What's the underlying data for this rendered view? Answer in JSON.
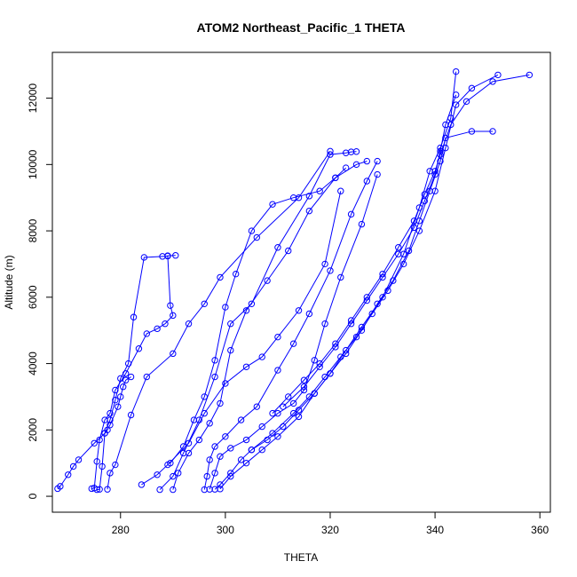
{
  "chart_data": {
    "type": "scatter",
    "title": "ATOM2 Northeast_Pacific_1 THETA",
    "xlabel": "THETA",
    "ylabel": "Altitude (m)",
    "xlim": [
      267,
      362
    ],
    "ylim": [
      -480,
      13380
    ],
    "x_ticks": [
      280,
      300,
      320,
      340,
      360
    ],
    "y_ticks": [
      0,
      2000,
      4000,
      6000,
      8000,
      10000,
      12000
    ],
    "grid": false,
    "legend": "none",
    "color": "#0000ff",
    "series": [
      {
        "x": [
          268,
          268.5,
          270,
          271,
          272,
          275,
          277,
          278,
          279,
          280,
          281.5,
          282.5,
          284.5,
          288,
          289
        ],
        "y": [
          230,
          300,
          650,
          900,
          1100,
          1600,
          1900,
          2300,
          2900,
          3550,
          4000,
          5400,
          7200,
          7230,
          7240
        ]
      },
      {
        "x": [
          274.5,
          275,
          275.5,
          276,
          277,
          278,
          279,
          281,
          283.5,
          285,
          287,
          288.5,
          290,
          289.5,
          289,
          290.5
        ],
        "y": [
          230,
          250,
          1050,
          1700,
          2300,
          2500,
          3200,
          3700,
          4450,
          4900,
          5050,
          5200,
          5450,
          5750,
          7250,
          7260
        ]
      },
      {
        "x": [
          275.5,
          276,
          276.5,
          277,
          277.5,
          278,
          279.5,
          280,
          280.5,
          281,
          282
        ],
        "y": [
          200,
          210,
          900,
          1900,
          2000,
          2150,
          2700,
          3000,
          3300,
          3500,
          3600
        ]
      },
      {
        "x": [
          277.5,
          278,
          279,
          282,
          285,
          290,
          293,
          296,
          299,
          306,
          314,
          320
        ],
        "y": [
          210,
          700,
          950,
          2450,
          3600,
          4300,
          5200,
          5800,
          6600,
          7800,
          9000,
          10400
        ]
      },
      {
        "x": [
          284,
          287,
          289,
          293,
          296,
          300,
          304,
          307,
          310,
          314,
          319,
          322
        ],
        "y": [
          350,
          650,
          950,
          1600,
          2500,
          3400,
          3900,
          4200,
          4800,
          5600,
          7000,
          9200
        ]
      },
      {
        "x": [
          287.5,
          290,
          292,
          295,
          298,
          301,
          305,
          310,
          316,
          320,
          323,
          324,
          325
        ],
        "y": [
          200,
          600,
          1300,
          2300,
          3600,
          5200,
          5800,
          7500,
          9050,
          10300,
          10350,
          10380,
          10390
        ]
      },
      {
        "x": [
          289.5,
          292,
          294,
          296,
          298,
          300,
          302,
          305,
          309,
          313,
          318,
          321,
          323
        ],
        "y": [
          1000,
          1500,
          2300,
          3000,
          4100,
          5700,
          6700,
          8000,
          8800,
          9000,
          9200,
          9600,
          9900
        ]
      },
      {
        "x": [
          290,
          291,
          293,
          295,
          297,
          299,
          301,
          304,
          308,
          312,
          316,
          321,
          325,
          327
        ],
        "y": [
          200,
          700,
          1300,
          1700,
          2200,
          2800,
          4400,
          5600,
          6500,
          7400,
          8600,
          9600,
          10000,
          10100
        ]
      },
      {
        "x": [
          296,
          296.5,
          297,
          298,
          300,
          303,
          306,
          310,
          313,
          316,
          320,
          324,
          327,
          329
        ],
        "y": [
          200,
          600,
          1100,
          1500,
          1800,
          2300,
          2700,
          3800,
          4600,
          5500,
          6800,
          8500,
          9500,
          10100
        ]
      },
      {
        "x": [
          297,
          298,
          299,
          301,
          304,
          307,
          310,
          313,
          315,
          317,
          319,
          322,
          326,
          329
        ],
        "y": [
          210,
          700,
          1200,
          1450,
          1700,
          2100,
          2500,
          2800,
          3200,
          4100,
          5200,
          6600,
          8200,
          9700
        ]
      },
      {
        "x": [
          298,
          299,
          301,
          303,
          305,
          308,
          311,
          314,
          317,
          320,
          323,
          326,
          330,
          334,
          337,
          339,
          341,
          343,
          344
        ],
        "y": [
          210,
          350,
          700,
          1100,
          1400,
          1700,
          2100,
          2600,
          3100,
          3700,
          4400,
          5100,
          6000,
          7300,
          8700,
          9800,
          10500,
          11400,
          12800
        ]
      },
      {
        "x": [
          299,
          301,
          304,
          307,
          310,
          314,
          317,
          320,
          323,
          326,
          329,
          332,
          335,
          337,
          339,
          341,
          342,
          347,
          351
        ],
        "y": [
          220,
          600,
          1000,
          1400,
          1800,
          2400,
          3100,
          3700,
          4300,
          5000,
          5800,
          6500,
          7400,
          8300,
          9200,
          10100,
          10800,
          11000,
          11000
        ]
      },
      {
        "x": [
          305,
          309,
          313,
          316,
          319,
          322,
          325,
          328,
          331,
          334,
          337,
          340,
          342,
          344,
          347,
          352
        ],
        "y": [
          1400,
          1900,
          2500,
          3000,
          3600,
          4200,
          4800,
          5500,
          6200,
          7000,
          8000,
          9200,
          10500,
          11800,
          12300,
          12700
        ]
      },
      {
        "x": [
          309,
          312,
          315,
          318,
          321,
          324,
          327,
          330,
          333,
          336,
          338,
          340,
          341,
          343,
          346,
          351,
          358
        ],
        "y": [
          2500,
          3000,
          3500,
          4000,
          4600,
          5300,
          6000,
          6700,
          7500,
          8300,
          9100,
          9800,
          10300,
          11200,
          11900,
          12500,
          12700
        ]
      },
      {
        "x": [
          311,
          315,
          318,
          321,
          324,
          327,
          330,
          333,
          336,
          338,
          340,
          341,
          342,
          344
        ],
        "y": [
          2700,
          3300,
          3900,
          4500,
          5200,
          5900,
          6600,
          7300,
          8100,
          8900,
          9700,
          10400,
          11200,
          12100
        ]
      }
    ]
  }
}
